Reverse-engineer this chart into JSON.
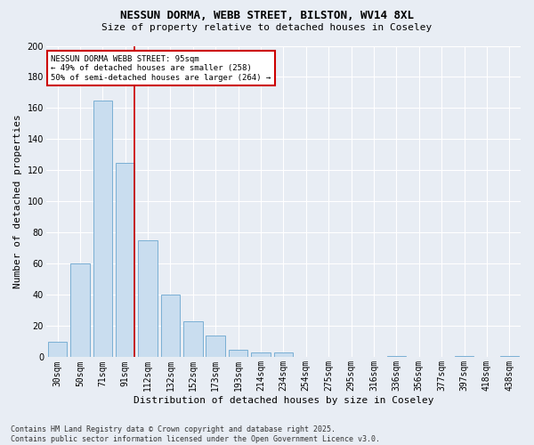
{
  "title_line1": "NESSUN DORMA, WEBB STREET, BILSTON, WV14 8XL",
  "title_line2": "Size of property relative to detached houses in Coseley",
  "xlabel": "Distribution of detached houses by size in Coseley",
  "ylabel": "Number of detached properties",
  "categories": [
    "30sqm",
    "50sqm",
    "71sqm",
    "91sqm",
    "112sqm",
    "132sqm",
    "152sqm",
    "173sqm",
    "193sqm",
    "214sqm",
    "234sqm",
    "254sqm",
    "275sqm",
    "295sqm",
    "316sqm",
    "336sqm",
    "356sqm",
    "377sqm",
    "397sqm",
    "418sqm",
    "438sqm"
  ],
  "values": [
    10,
    60,
    165,
    125,
    75,
    40,
    23,
    14,
    5,
    3,
    3,
    0,
    0,
    0,
    0,
    1,
    0,
    0,
    1,
    0,
    1
  ],
  "bar_color": "#c9ddef",
  "bar_edge_color": "#7aafd4",
  "subject_line_color": "#cc0000",
  "annotation_title": "NESSUN DORMA WEBB STREET: 95sqm",
  "annotation_line1": "← 49% of detached houses are smaller (258)",
  "annotation_line2": "50% of semi-detached houses are larger (264) →",
  "annotation_box_edge_color": "#cc0000",
  "ylim": [
    0,
    200
  ],
  "yticks": [
    0,
    20,
    40,
    60,
    80,
    100,
    120,
    140,
    160,
    180,
    200
  ],
  "footer_line1": "Contains HM Land Registry data © Crown copyright and database right 2025.",
  "footer_line2": "Contains public sector information licensed under the Open Government Licence v3.0.",
  "background_color": "#e8edf4",
  "grid_color": "#ffffff",
  "title_fontsize": 9,
  "subtitle_fontsize": 8,
  "ylabel_fontsize": 8,
  "xlabel_fontsize": 8,
  "tick_fontsize": 7,
  "footer_fontsize": 6
}
